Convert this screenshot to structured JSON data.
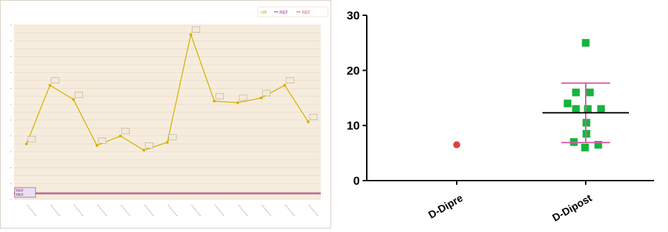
{
  "chart_data": [
    {
      "type": "line",
      "legend": {
        "entries": [
          "HR",
          "REF",
          "REF"
        ],
        "placement": "top-right"
      },
      "background_color": "#f6ecdd",
      "grid": true,
      "series": [
        {
          "name": "HR",
          "color": "#d4b000",
          "values": [
            1.5,
            5.2,
            4.3,
            1.4,
            2.0,
            1.1,
            1.6,
            8.4,
            4.2,
            4.1,
            4.4,
            5.2,
            2.9
          ]
        },
        {
          "name": "REF",
          "color": "#8a2a8a",
          "values": [
            -1.6,
            -1.6,
            -1.6,
            -1.6,
            -1.6,
            -1.6,
            -1.6,
            -1.6,
            -1.6,
            -1.6,
            -1.6,
            -1.6,
            -1.6
          ]
        },
        {
          "name": "REF",
          "color": "#d9534f",
          "values": [
            -1.6,
            -1.6,
            -1.6,
            -1.6,
            -1.6,
            -1.6,
            -1.6,
            -1.6,
            -1.6,
            -1.6,
            -1.6,
            -1.6,
            -1.6
          ]
        }
      ],
      "ylim": [
        -2,
        9
      ],
      "categories": [
        "",
        "",
        "",
        "",
        "",
        "",
        "",
        "",
        "",
        "",
        "",
        "",
        ""
      ]
    },
    {
      "type": "scatter",
      "categories": [
        "D-Dipre",
        "D-Dipost"
      ],
      "ylim": [
        0,
        30
      ],
      "yticks": [
        0,
        10,
        20,
        30
      ],
      "series": [
        {
          "name": "D-Dipre",
          "color": "#e0403f",
          "marker": "circle",
          "values": [
            6.5
          ]
        },
        {
          "name": "D-Dipost",
          "color": "#14b43c",
          "marker": "square",
          "values": [
            25,
            16,
            16,
            14,
            13,
            13,
            13,
            10.5,
            8.5,
            7,
            6.5,
            6
          ],
          "mean": 12.3,
          "sd_upper": 17.7,
          "sd_lower": 6.9,
          "mean_color": "#000000",
          "error_color": "#d65aa6"
        }
      ]
    }
  ]
}
